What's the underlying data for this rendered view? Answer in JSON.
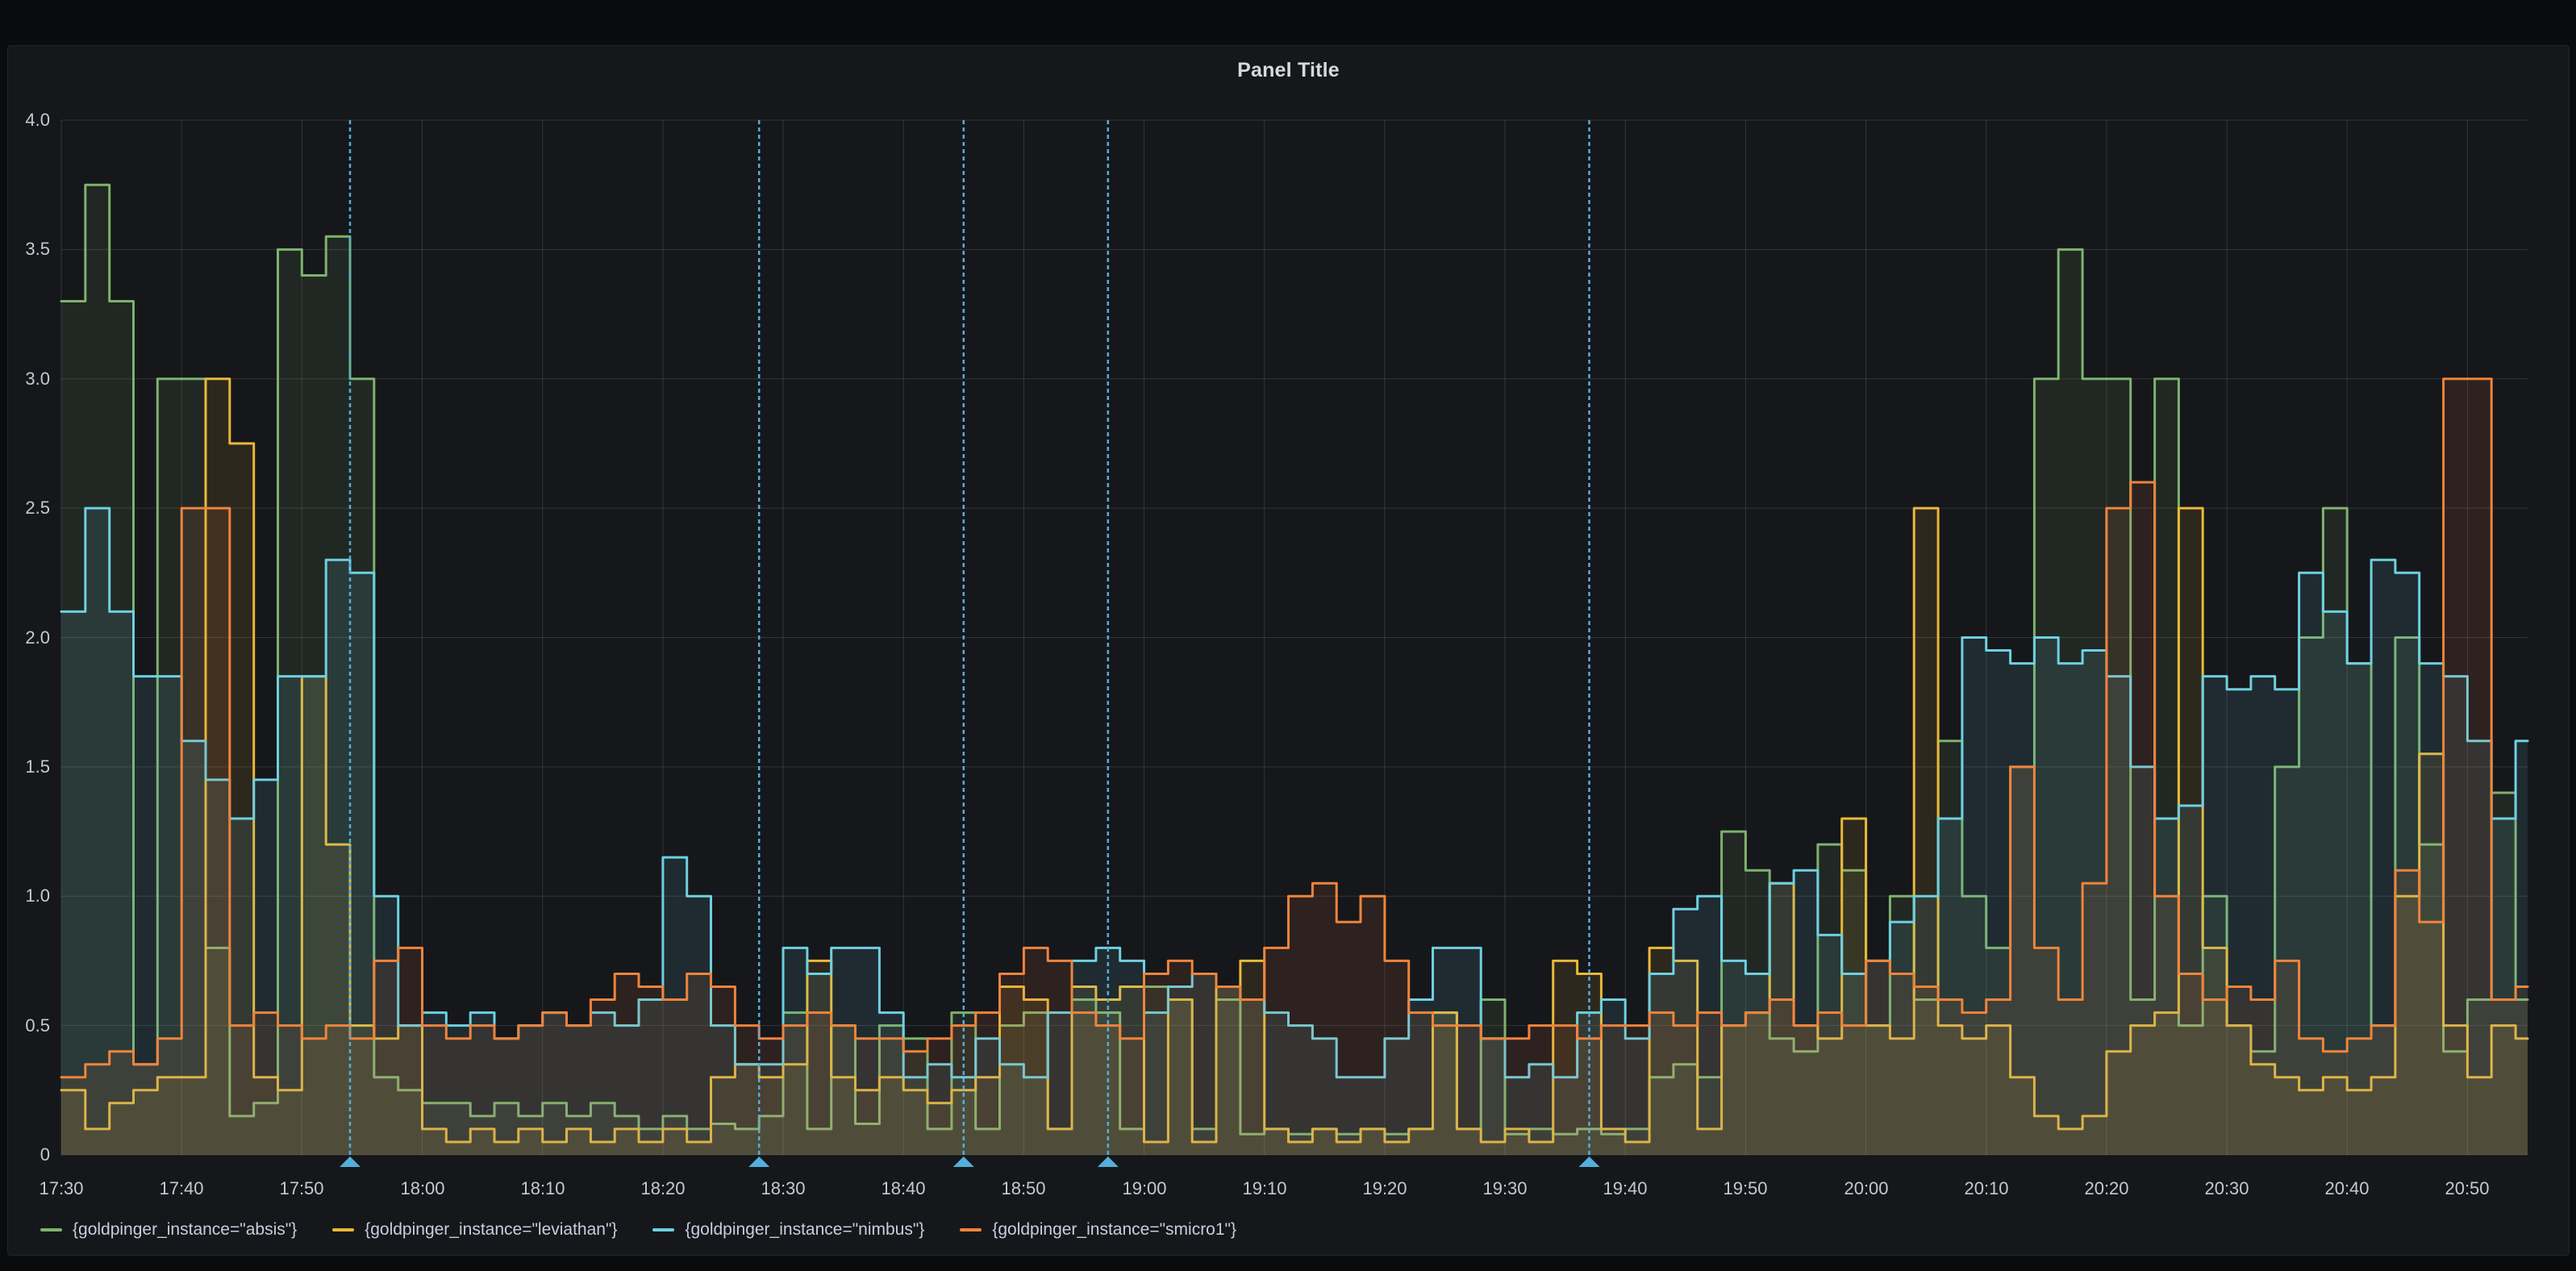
{
  "panel": {
    "title": "Panel Title"
  },
  "colors": {
    "page_background": "#0a0b0d",
    "panel_background": "#16171b",
    "grid": "rgba(204,204,220,0.16)",
    "tick_text": "#c7c8d1",
    "title_text": "#d8d9da",
    "annotation": "#54aedc"
  },
  "chart_data": {
    "type": "line",
    "interpolation": "step-after",
    "title": "Panel Title",
    "xlabel": "",
    "ylabel": "",
    "ylim": [
      0,
      4
    ],
    "grid": true,
    "legend_position": "bottom-left",
    "x_domain_minutes": [
      0,
      205
    ],
    "x_start_label": "17:30",
    "x_step_minutes": 2,
    "x_tick_interval_minutes": 10,
    "x_axis_ticks": [
      "17:30",
      "17:40",
      "17:50",
      "18:00",
      "18:10",
      "18:20",
      "18:30",
      "18:40",
      "18:50",
      "19:00",
      "19:10",
      "19:20",
      "19:30",
      "19:40",
      "19:50",
      "20:00",
      "20:10",
      "20:20",
      "20:30",
      "20:40",
      "20:50"
    ],
    "y_axis_ticks": [
      "0",
      "0.5",
      "1.0",
      "1.5",
      "2.0",
      "2.5",
      "3.0",
      "3.5",
      "4.0"
    ],
    "series": [
      {
        "name": "{goldpinger_instance=\"absis\"}",
        "color": "#7EB26D",
        "values": [
          3.3,
          3.75,
          3.3,
          0.35,
          3.0,
          3.0,
          0.8,
          0.15,
          0.2,
          3.5,
          3.4,
          3.55,
          3.0,
          0.3,
          0.25,
          0.2,
          0.2,
          0.15,
          0.2,
          0.15,
          0.2,
          0.15,
          0.2,
          0.15,
          0.1,
          0.15,
          0.1,
          0.12,
          0.1,
          0.15,
          0.55,
          0.1,
          0.5,
          0.12,
          0.5,
          0.45,
          0.1,
          0.55,
          0.1,
          0.5,
          0.55,
          0.1,
          0.6,
          0.55,
          0.1,
          0.65,
          0.6,
          0.1,
          0.6,
          0.08,
          0.1,
          0.08,
          0.1,
          0.08,
          0.1,
          0.08,
          0.1,
          0.55,
          0.1,
          0.6,
          0.08,
          0.1,
          0.08,
          0.1,
          0.08,
          0.1,
          0.3,
          0.35,
          0.3,
          1.25,
          1.1,
          0.45,
          0.4,
          1.2,
          1.1,
          0.5,
          1.0,
          0.6,
          1.6,
          1.0,
          0.8,
          1.5,
          3.0,
          3.5,
          3.0,
          3.0,
          0.6,
          3.0,
          0.5,
          1.0,
          0.5,
          0.4,
          1.5,
          2.0,
          2.5,
          1.9,
          0.5,
          2.0,
          1.2,
          0.4,
          0.6,
          1.4,
          0.6
        ]
      },
      {
        "name": "{goldpinger_instance=\"leviathan\"}",
        "color": "#EAB839",
        "values": [
          0.25,
          0.1,
          0.2,
          0.25,
          0.3,
          0.3,
          3.0,
          2.75,
          0.3,
          0.25,
          1.85,
          1.2,
          0.5,
          0.45,
          0.5,
          0.1,
          0.05,
          0.1,
          0.05,
          0.1,
          0.05,
          0.1,
          0.05,
          0.1,
          0.05,
          0.1,
          0.05,
          0.3,
          0.35,
          0.3,
          0.35,
          0.75,
          0.3,
          0.25,
          0.3,
          0.25,
          0.2,
          0.25,
          0.3,
          0.65,
          0.6,
          0.1,
          0.65,
          0.6,
          0.65,
          0.05,
          0.6,
          0.05,
          0.65,
          0.75,
          0.1,
          0.05,
          0.1,
          0.05,
          0.1,
          0.05,
          0.1,
          0.55,
          0.1,
          0.05,
          0.1,
          0.05,
          0.75,
          0.7,
          0.1,
          0.05,
          0.8,
          0.75,
          0.1,
          0.5,
          0.55,
          1.05,
          0.5,
          0.45,
          1.3,
          0.5,
          0.45,
          2.5,
          0.5,
          0.45,
          0.5,
          0.3,
          0.15,
          0.1,
          0.15,
          0.4,
          0.5,
          0.55,
          2.5,
          0.8,
          0.5,
          0.35,
          0.3,
          0.25,
          0.3,
          0.25,
          0.3,
          1.0,
          1.55,
          0.5,
          0.3,
          0.5,
          0.45
        ]
      },
      {
        "name": "{goldpinger_instance=\"nimbus\"}",
        "color": "#6ED0E0",
        "values": [
          2.1,
          2.5,
          2.1,
          1.85,
          1.85,
          1.6,
          1.45,
          1.3,
          1.45,
          1.85,
          1.85,
          2.3,
          2.25,
          1.0,
          0.5,
          0.55,
          0.5,
          0.55,
          0.45,
          0.5,
          0.55,
          0.5,
          0.55,
          0.5,
          0.6,
          1.15,
          1.0,
          0.5,
          0.35,
          0.35,
          0.8,
          0.7,
          0.8,
          0.8,
          0.55,
          0.3,
          0.35,
          0.3,
          0.45,
          0.35,
          0.3,
          0.55,
          0.75,
          0.8,
          0.75,
          0.55,
          0.65,
          0.7,
          0.65,
          0.6,
          0.55,
          0.5,
          0.45,
          0.3,
          0.3,
          0.45,
          0.6,
          0.8,
          0.8,
          0.45,
          0.3,
          0.35,
          0.3,
          0.55,
          0.6,
          0.45,
          0.7,
          0.95,
          1.0,
          0.75,
          0.7,
          1.05,
          1.1,
          0.85,
          0.7,
          0.75,
          0.9,
          1.0,
          1.3,
          2.0,
          1.95,
          1.9,
          2.0,
          1.9,
          1.95,
          1.85,
          1.5,
          1.3,
          1.35,
          1.85,
          1.8,
          1.85,
          1.8,
          2.25,
          2.1,
          1.9,
          2.3,
          2.25,
          1.9,
          1.85,
          1.6,
          1.3,
          1.6
        ]
      },
      {
        "name": "{goldpinger_instance=\"smicro1\"}",
        "color": "#EF843C",
        "values": [
          0.3,
          0.35,
          0.4,
          0.35,
          0.45,
          2.5,
          2.5,
          0.5,
          0.55,
          0.5,
          0.45,
          0.5,
          0.45,
          0.75,
          0.8,
          0.5,
          0.45,
          0.5,
          0.45,
          0.5,
          0.55,
          0.5,
          0.6,
          0.7,
          0.65,
          0.6,
          0.7,
          0.65,
          0.5,
          0.45,
          0.5,
          0.55,
          0.5,
          0.45,
          0.45,
          0.4,
          0.45,
          0.5,
          0.55,
          0.7,
          0.8,
          0.75,
          0.55,
          0.5,
          0.45,
          0.7,
          0.75,
          0.7,
          0.65,
          0.6,
          0.8,
          1.0,
          1.05,
          0.9,
          1.0,
          0.75,
          0.55,
          0.5,
          0.5,
          0.45,
          0.45,
          0.5,
          0.5,
          0.45,
          0.5,
          0.5,
          0.55,
          0.5,
          0.55,
          0.5,
          0.55,
          0.6,
          0.5,
          0.55,
          0.5,
          0.75,
          0.7,
          0.65,
          0.6,
          0.55,
          0.6,
          1.5,
          0.8,
          0.6,
          1.05,
          2.5,
          2.6,
          1.0,
          0.7,
          0.6,
          0.65,
          0.6,
          0.75,
          0.45,
          0.4,
          0.45,
          0.5,
          1.1,
          0.9,
          3.0,
          3.0,
          0.6,
          0.65
        ]
      }
    ],
    "annotations": {
      "style": "vertical-dashed-line-with-triangle-marker",
      "color": "#54aedc",
      "times": [
        "17:54",
        "18:28",
        "18:45",
        "18:57",
        "19:37"
      ],
      "minutes_from_start": [
        24,
        58,
        75,
        87,
        127
      ]
    }
  },
  "legend": {
    "items": [
      "{goldpinger_instance=\"absis\"}",
      "{goldpinger_instance=\"leviathan\"}",
      "{goldpinger_instance=\"nimbus\"}",
      "{goldpinger_instance=\"smicro1\"}"
    ]
  }
}
